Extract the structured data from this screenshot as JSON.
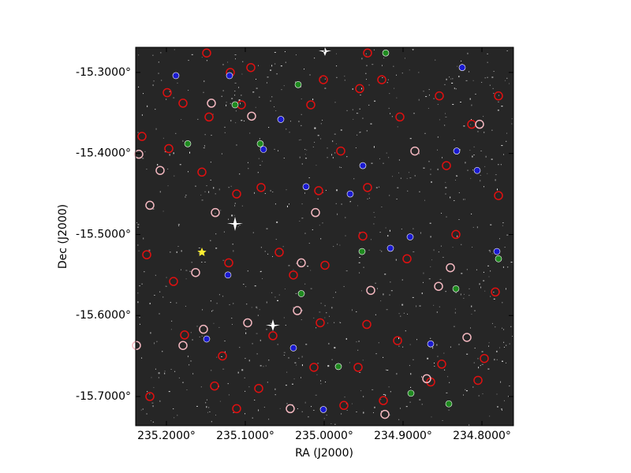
{
  "chart_data": {
    "type": "scatter",
    "x_label": "RA (J2000)",
    "y_label": "Dec (J2000)",
    "xlim": [
      235.239,
      234.76
    ],
    "ylim": [
      -15.736,
      -15.269
    ],
    "xticks": [
      {
        "value": 235.2,
        "label": "235.2000°"
      },
      {
        "value": 235.1,
        "label": "235.1000°"
      },
      {
        "value": 235.0,
        "label": "235.0000°"
      },
      {
        "value": 234.9,
        "label": "234.9000°"
      },
      {
        "value": 234.8,
        "label": "234.8000°"
      }
    ],
    "yticks": [
      {
        "value": -15.3,
        "label": "-15.3000°"
      },
      {
        "value": -15.4,
        "label": "-15.4000°"
      },
      {
        "value": -15.5,
        "label": "-15.5000°"
      },
      {
        "value": -15.6,
        "label": "-15.6000°"
      },
      {
        "value": -15.7,
        "label": "-15.7000°"
      }
    ],
    "series": [
      {
        "color": "#e01010",
        "marker": "ring",
        "x": [
          235.149,
          235.119,
          235.093,
          235.001,
          234.945,
          235.199,
          235.179,
          235.146,
          235.105,
          235.017,
          234.955,
          234.927,
          234.904,
          234.854,
          234.813,
          234.779,
          235.231,
          235.197,
          235.155,
          235.111,
          235.08,
          235.007,
          234.979,
          234.945,
          234.845,
          234.779,
          235.225,
          235.191,
          235.121,
          235.057,
          235.039,
          234.999,
          234.951,
          234.895,
          234.833,
          234.783,
          235.177,
          235.129,
          235.065,
          235.005,
          234.957,
          234.907,
          234.851,
          234.797,
          235.221,
          235.139,
          235.083,
          235.013,
          234.975,
          234.925,
          234.865,
          234.805,
          235.111,
          234.946
        ],
        "values": [
          -15.276,
          -15.3,
          -15.294,
          -15.309,
          -15.276,
          -15.325,
          -15.338,
          -15.355,
          -15.34,
          -15.34,
          -15.32,
          -15.309,
          -15.355,
          -15.329,
          -15.364,
          -15.329,
          -15.379,
          -15.394,
          -15.423,
          -15.45,
          -15.442,
          -15.446,
          -15.397,
          -15.442,
          -15.415,
          -15.452,
          -15.525,
          -15.558,
          -15.535,
          -15.522,
          -15.55,
          -15.538,
          -15.502,
          -15.53,
          -15.5,
          -15.571,
          -15.624,
          -15.65,
          -15.625,
          -15.609,
          -15.664,
          -15.631,
          -15.66,
          -15.653,
          -15.7,
          -15.687,
          -15.69,
          -15.664,
          -15.711,
          -15.705,
          -15.682,
          -15.68,
          -15.715,
          -15.611
        ]
      },
      {
        "color": "#f4b8c0",
        "marker": "ring",
        "x": [
          235.143,
          235.092,
          235.235,
          235.208,
          235.138,
          235.221,
          235.011,
          235.029,
          235.034,
          235.163,
          235.153,
          235.097,
          234.941,
          234.855,
          234.84,
          234.803,
          234.885,
          235.179,
          234.819,
          234.87,
          234.923,
          235.043,
          235.238
        ],
        "values": [
          -15.338,
          -15.354,
          -15.401,
          -15.421,
          -15.473,
          -15.464,
          -15.473,
          -15.535,
          -15.594,
          -15.547,
          -15.617,
          -15.609,
          -15.569,
          -15.564,
          -15.541,
          -15.364,
          -15.397,
          -15.637,
          -15.627,
          -15.678,
          -15.722,
          -15.715,
          -15.637
        ]
      },
      {
        "color": "#1a1ad0",
        "marker": "dot",
        "x": [
          235.188,
          235.12,
          235.055,
          235.077,
          235.023,
          234.967,
          234.891,
          234.916,
          234.832,
          234.806,
          235.122,
          235.149,
          235.039,
          235.001,
          234.951,
          234.865,
          234.825,
          234.781
        ],
        "values": [
          -15.304,
          -15.304,
          -15.358,
          -15.395,
          -15.441,
          -15.45,
          -15.503,
          -15.517,
          -15.397,
          -15.421,
          -15.55,
          -15.629,
          -15.64,
          -15.716,
          -15.415,
          -15.635,
          -15.294,
          -15.521
        ]
      },
      {
        "color": "#1f8a1f",
        "marker": "dot",
        "x": [
          235.113,
          235.033,
          235.173,
          235.081,
          234.952,
          235.029,
          234.833,
          234.982,
          234.89,
          234.842,
          234.922,
          234.779
        ],
        "values": [
          -15.34,
          -15.315,
          -15.388,
          -15.388,
          -15.521,
          -15.573,
          -15.567,
          -15.663,
          -15.696,
          -15.709,
          -15.276,
          -15.53
        ]
      },
      {
        "color": "#ffee33",
        "marker": "star",
        "x": [
          235.155
        ],
        "values": [
          -15.522
        ]
      }
    ]
  }
}
